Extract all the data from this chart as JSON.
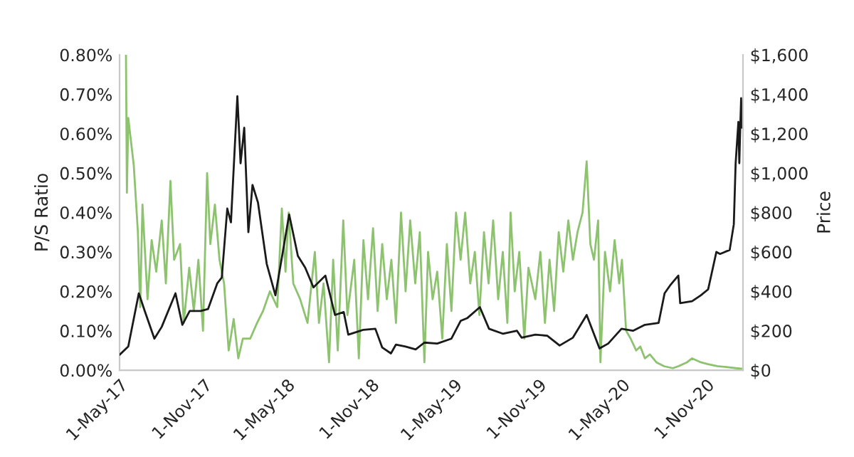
{
  "chart_data": {
    "type": "line",
    "ylabel": "P/S Ratio",
    "y2label": "Price",
    "grid": false,
    "legend": false,
    "marker": "none",
    "line_style": "solid",
    "xlim": [
      "2017-05-01",
      "2021-01-20"
    ],
    "xticks": [
      {
        "value": "2017-05-01",
        "label": "1-May-17"
      },
      {
        "value": "2017-11-01",
        "label": "1-Nov-17"
      },
      {
        "value": "2018-05-01",
        "label": "1-May-18"
      },
      {
        "value": "2018-11-01",
        "label": "1-Nov-18"
      },
      {
        "value": "2019-05-01",
        "label": "1-May-19"
      },
      {
        "value": "2019-11-01",
        "label": "1-Nov-19"
      },
      {
        "value": "2020-05-01",
        "label": "1-May-20"
      },
      {
        "value": "2020-11-01",
        "label": "1-Nov-20"
      }
    ],
    "ylim": [
      0,
      0.8
    ],
    "yticks": [
      {
        "value": 0,
        "label": "0.00%"
      },
      {
        "value": 0.1,
        "label": "0.10%"
      },
      {
        "value": 0.2,
        "label": "0.20%"
      },
      {
        "value": 0.3,
        "label": "0.30%"
      },
      {
        "value": 0.4,
        "label": "0.40%"
      },
      {
        "value": 0.5,
        "label": "0.50%"
      },
      {
        "value": 0.6,
        "label": "0.60%"
      },
      {
        "value": 0.7,
        "label": "0.70%"
      },
      {
        "value": 0.8,
        "label": "0.80%"
      }
    ],
    "y2lim": [
      0,
      1600
    ],
    "y2ticks": [
      {
        "value": 0,
        "label": "$0"
      },
      {
        "value": 200,
        "label": "$200"
      },
      {
        "value": 400,
        "label": "$400"
      },
      {
        "value": 600,
        "label": "$600"
      },
      {
        "value": 800,
        "label": "$800"
      },
      {
        "value": 1000,
        "label": "$1,000"
      },
      {
        "value": 1200,
        "label": "$1,200"
      },
      {
        "value": 1400,
        "label": "$1,400"
      },
      {
        "value": 1600,
        "label": "$1,600"
      }
    ],
    "series": [
      {
        "color": "#8dc26f",
        "x": [
          "2017-05-15",
          "2017-05-17",
          "2017-05-20",
          "2017-06-01",
          "2017-06-10",
          "2017-06-15",
          "2017-06-20",
          "2017-07-01",
          "2017-07-10",
          "2017-07-20",
          "2017-08-01",
          "2017-08-10",
          "2017-08-20",
          "2017-08-28",
          "2017-09-10",
          "2017-09-18",
          "2017-09-30",
          "2017-10-10",
          "2017-10-20",
          "2017-10-30",
          "2017-11-08",
          "2017-11-15",
          "2017-11-25",
          "2017-12-05",
          "2017-12-15",
          "2017-12-25",
          "2018-01-05",
          "2018-01-15",
          "2018-01-25",
          "2018-02-10",
          "2018-02-25",
          "2018-03-10",
          "2018-03-25",
          "2018-04-10",
          "2018-04-20",
          "2018-04-28",
          "2018-05-05",
          "2018-05-15",
          "2018-05-30",
          "2018-06-15",
          "2018-07-01",
          "2018-07-10",
          "2018-07-20",
          "2018-08-01",
          "2018-08-10",
          "2018-08-20",
          "2018-09-01",
          "2018-09-10",
          "2018-09-25",
          "2018-10-05",
          "2018-10-15",
          "2018-10-25",
          "2018-11-05",
          "2018-11-15",
          "2018-11-25",
          "2018-12-05",
          "2018-12-15",
          "2018-12-25",
          "2019-01-05",
          "2019-01-15",
          "2019-01-25",
          "2019-02-05",
          "2019-02-15",
          "2019-02-25",
          "2019-03-05",
          "2019-03-15",
          "2019-03-25",
          "2019-04-05",
          "2019-04-15",
          "2019-04-25",
          "2019-05-05",
          "2019-05-15",
          "2019-05-25",
          "2019-06-05",
          "2019-06-15",
          "2019-06-25",
          "2019-07-05",
          "2019-07-15",
          "2019-07-25",
          "2019-08-05",
          "2019-08-15",
          "2019-08-25",
          "2019-09-01",
          "2019-09-10",
          "2019-09-20",
          "2019-10-01",
          "2019-10-10",
          "2019-10-25",
          "2019-11-05",
          "2019-11-15",
          "2019-11-25",
          "2019-12-05",
          "2019-12-15",
          "2019-12-25",
          "2020-01-05",
          "2020-01-15",
          "2020-01-25",
          "2020-02-05",
          "2020-02-14",
          "2020-02-22",
          "2020-03-01",
          "2020-03-10",
          "2020-03-15",
          "2020-03-25",
          "2020-04-05",
          "2020-04-15",
          "2020-04-25",
          "2020-05-01",
          "2020-05-10",
          "2020-05-20",
          "2020-06-01",
          "2020-06-10",
          "2020-06-20",
          "2020-07-01",
          "2020-07-15",
          "2020-08-01",
          "2020-08-20",
          "2020-09-01",
          "2020-09-20",
          "2020-10-01",
          "2020-10-20",
          "2020-11-05",
          "2020-11-25",
          "2020-12-15",
          "2021-01-05",
          "2021-01-17"
        ],
        "values": [
          0.8,
          0.45,
          0.64,
          0.52,
          0.35,
          0.16,
          0.42,
          0.18,
          0.33,
          0.25,
          0.38,
          0.22,
          0.48,
          0.28,
          0.32,
          0.12,
          0.26,
          0.15,
          0.28,
          0.1,
          0.5,
          0.32,
          0.42,
          0.28,
          0.22,
          0.05,
          0.13,
          0.03,
          0.08,
          0.08,
          0.12,
          0.15,
          0.2,
          0.16,
          0.41,
          0.25,
          0.4,
          0.22,
          0.18,
          0.12,
          0.3,
          0.12,
          0.22,
          0.02,
          0.28,
          0.05,
          0.38,
          0.14,
          0.28,
          0.03,
          0.33,
          0.18,
          0.36,
          0.15,
          0.32,
          0.18,
          0.28,
          0.12,
          0.4,
          0.2,
          0.38,
          0.22,
          0.35,
          0.02,
          0.3,
          0.18,
          0.25,
          0.08,
          0.32,
          0.15,
          0.4,
          0.28,
          0.4,
          0.22,
          0.3,
          0.14,
          0.35,
          0.22,
          0.38,
          0.18,
          0.3,
          0.12,
          0.4,
          0.2,
          0.3,
          0.08,
          0.26,
          0.18,
          0.3,
          0.12,
          0.28,
          0.15,
          0.35,
          0.25,
          0.38,
          0.28,
          0.35,
          0.4,
          0.53,
          0.32,
          0.28,
          0.38,
          0.02,
          0.3,
          0.2,
          0.33,
          0.22,
          0.28,
          0.1,
          0.08,
          0.05,
          0.06,
          0.03,
          0.04,
          0.02,
          0.01,
          0.005,
          0.01,
          0.02,
          0.03,
          0.02,
          0.015,
          0.01,
          0.008,
          0.005,
          0.004
        ]
      },
      {
        "color": "#1a1a1a",
        "axis": "y2",
        "x": [
          "2017-05-01",
          "2017-05-20",
          "2017-06-12",
          "2017-06-25",
          "2017-07-16",
          "2017-08-01",
          "2017-08-31",
          "2017-09-15",
          "2017-10-01",
          "2017-10-25",
          "2017-11-10",
          "2017-11-30",
          "2017-12-10",
          "2017-12-22",
          "2017-12-30",
          "2018-01-13",
          "2018-01-20",
          "2018-01-28",
          "2018-02-06",
          "2018-02-15",
          "2018-02-27",
          "2018-03-18",
          "2018-04-06",
          "2018-04-28",
          "2018-05-06",
          "2018-05-25",
          "2018-06-10",
          "2018-06-28",
          "2018-07-24",
          "2018-08-14",
          "2018-09-02",
          "2018-09-12",
          "2018-10-15",
          "2018-11-10",
          "2018-11-25",
          "2018-12-14",
          "2018-12-25",
          "2019-01-15",
          "2019-02-06",
          "2019-02-25",
          "2019-03-25",
          "2019-04-25",
          "2019-05-15",
          "2019-05-30",
          "2019-06-26",
          "2019-07-16",
          "2019-08-15",
          "2019-09-15",
          "2019-09-25",
          "2019-10-25",
          "2019-11-20",
          "2019-12-17",
          "2020-01-15",
          "2020-02-14",
          "2020-03-13",
          "2020-04-01",
          "2020-04-30",
          "2020-05-25",
          "2020-06-20",
          "2020-07-20",
          "2020-08-02",
          "2020-08-14",
          "2020-09-01",
          "2020-09-05",
          "2020-10-01",
          "2020-10-20",
          "2020-11-05",
          "2020-11-23",
          "2020-12-01",
          "2020-12-22",
          "2020-12-31",
          "2021-01-04",
          "2021-01-10",
          "2021-01-12",
          "2021-01-14",
          "2021-01-16",
          "2021-01-18"
        ],
        "values": [
          78,
          120,
          390,
          300,
          160,
          220,
          390,
          230,
          300,
          300,
          310,
          440,
          470,
          820,
          750,
          1390,
          1050,
          1230,
          700,
          940,
          850,
          540,
          380,
          680,
          790,
          580,
          520,
          420,
          480,
          280,
          295,
          180,
          205,
          210,
          115,
          85,
          130,
          120,
          105,
          140,
          135,
          160,
          250,
          265,
          320,
          210,
          185,
          200,
          165,
          180,
          175,
          125,
          165,
          280,
          110,
          135,
          210,
          200,
          230,
          240,
          390,
          430,
          480,
          340,
          350,
          380,
          410,
          600,
          590,
          610,
          740,
          1050,
          1260,
          1050,
          1230,
          1380,
          1230
        ]
      }
    ]
  }
}
